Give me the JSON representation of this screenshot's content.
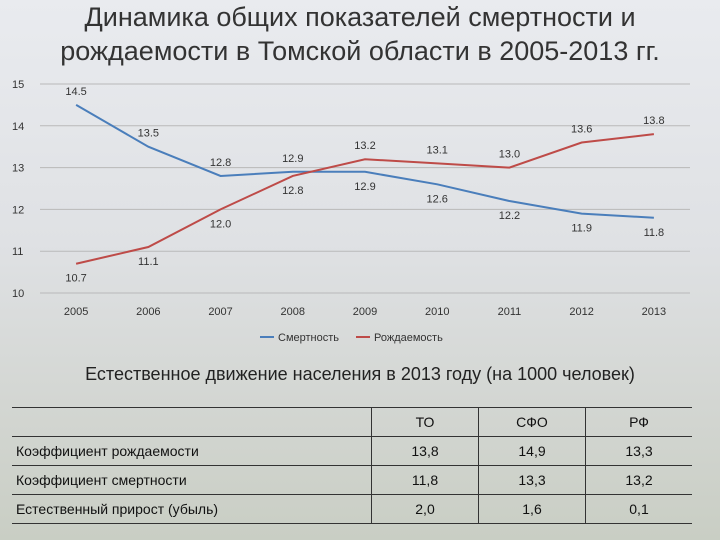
{
  "chart_data": {
    "type": "line",
    "title": "Динамика общих показателей смертности и рождаемости в Томской области в 2005-2013 гг.",
    "categories": [
      "2005",
      "2006",
      "2007",
      "2008",
      "2009",
      "2010",
      "2011",
      "2012",
      "2013"
    ],
    "series": [
      {
        "name": "Смертность",
        "color": "#4a7ebb",
        "values": [
          14.5,
          13.5,
          12.8,
          12.9,
          12.9,
          12.6,
          12.2,
          11.9,
          11.8
        ],
        "value_labels": [
          "14.5",
          "13.5",
          "12.8",
          "12.9",
          "12.9",
          "12.6",
          "12.2",
          "11.9",
          "11.8"
        ]
      },
      {
        "name": "Рождаемость",
        "color": "#be4b48",
        "values": [
          10.7,
          11.1,
          12.0,
          12.8,
          13.2,
          13.1,
          13.0,
          13.6,
          13.8
        ],
        "value_labels": [
          "10.7",
          "11.1",
          "12.0",
          "12.8",
          "13.2",
          "13.1",
          "13.0",
          "13.6",
          "13.8"
        ]
      }
    ],
    "ylim": [
      10,
      15
    ],
    "yticks": [
      10,
      11,
      12,
      13,
      14,
      15
    ],
    "grid": true,
    "legend": "bottom"
  },
  "table": {
    "title": "Естественное движение населения в 2013 году (на 1000 человек)",
    "columns": [
      "ТО",
      "СФО",
      "РФ"
    ],
    "rows": [
      [
        "Коэффициент рождаемости",
        "13,8",
        "14,9",
        "13,3"
      ],
      [
        "Коэффициент смертности",
        "11,8",
        "13,3",
        "13,2"
      ],
      [
        "Естественный прирост (убыль)",
        "2,0",
        "1,6",
        "0,1"
      ]
    ]
  }
}
